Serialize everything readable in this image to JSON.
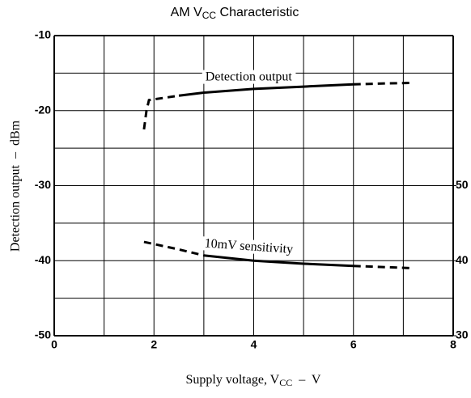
{
  "chart_data": {
    "type": "line",
    "title": [
      "AM V",
      "CC",
      " Characteristic"
    ],
    "x_label": [
      "Supply voltage, V",
      "CC",
      "  –  V"
    ],
    "y_label": "Detection output  –  dBm",
    "xlim": [
      0,
      8
    ],
    "xticks": [
      0,
      2,
      4,
      6,
      8
    ],
    "xminor": [
      1,
      3,
      5,
      7
    ],
    "ylim": [
      -50,
      -10
    ],
    "yticks": [
      -50,
      -40,
      -30,
      -20,
      -10
    ],
    "yminor": [
      -45,
      -35,
      -25,
      -15
    ],
    "y2lim": [
      30,
      70
    ],
    "y2ticks": [
      30,
      40,
      50
    ],
    "grid": true,
    "color": "#000000",
    "series": [
      {
        "name": "Detection output",
        "label_at": [
          3.9,
          -15.6
        ],
        "label_angle": 0,
        "segments": [
          {
            "style": "dashed",
            "x": [
              1.8,
              1.85,
              1.9,
              2.2,
              2.5
            ],
            "values": [
              -22.5,
              -20,
              -18.6,
              -18.3,
              -18
            ]
          },
          {
            "style": "solid",
            "x": [
              2.5,
              3,
              4,
              5,
              6
            ],
            "values": [
              -18,
              -17.6,
              -17.1,
              -16.8,
              -16.5
            ]
          },
          {
            "style": "dashed",
            "x": [
              6,
              6.5,
              7.2
            ],
            "values": [
              -16.5,
              -16.4,
              -16.3
            ]
          }
        ]
      },
      {
        "name": "10mV sensitivity",
        "label_at": [
          3.9,
          -38.2
        ],
        "label_angle": 4,
        "segments": [
          {
            "style": "dashed",
            "x": [
              1.8,
              2.5,
              3
            ],
            "values": [
              -37.5,
              -38.5,
              -39.3
            ]
          },
          {
            "style": "solid",
            "x": [
              3,
              4,
              5,
              6
            ],
            "values": [
              -39.3,
              -40,
              -40.4,
              -40.7
            ]
          },
          {
            "style": "dashed",
            "x": [
              6,
              7.2
            ],
            "values": [
              -40.7,
              -41
            ]
          }
        ]
      }
    ]
  }
}
